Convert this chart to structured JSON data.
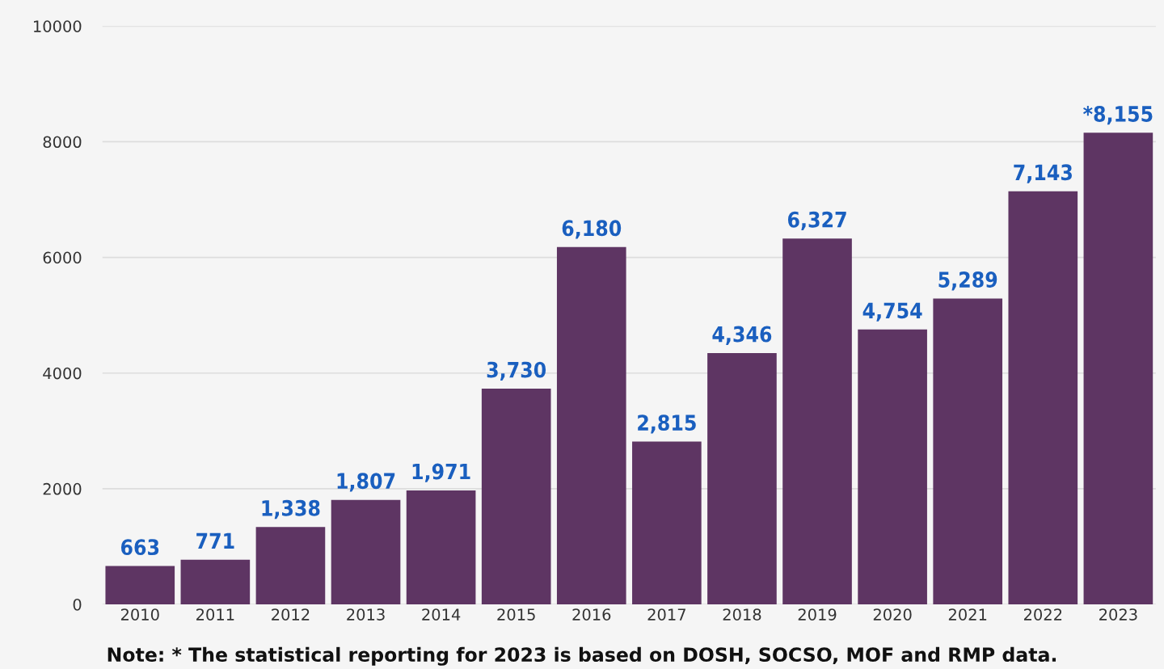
{
  "chart_data": {
    "type": "bar",
    "categories": [
      "2010",
      "2011",
      "2012",
      "2013",
      "2014",
      "2015",
      "2016",
      "2017",
      "2018",
      "2019",
      "2020",
      "2021",
      "2022",
      "2023"
    ],
    "values": [
      663,
      771,
      1338,
      1807,
      1971,
      3730,
      6180,
      2815,
      4346,
      6327,
      4754,
      5289,
      7143,
      8155
    ],
    "value_labels": [
      "663",
      "771",
      "1,338",
      "1,807",
      "1,971",
      "3,730",
      "6,180",
      "2,815",
      "4,346",
      "6,327",
      "4,754",
      "5,289",
      "7,143",
      "*8,155"
    ],
    "color": "#5e3563",
    "ylim": [
      0,
      10000
    ],
    "yticks": [
      0,
      2000,
      4000,
      6000,
      8000,
      10000
    ],
    "grid": "y",
    "annotations": [
      "Note: * The statistical reporting for 2023 is based on DOSH, SOCSO, MOF and RMP data."
    ]
  }
}
